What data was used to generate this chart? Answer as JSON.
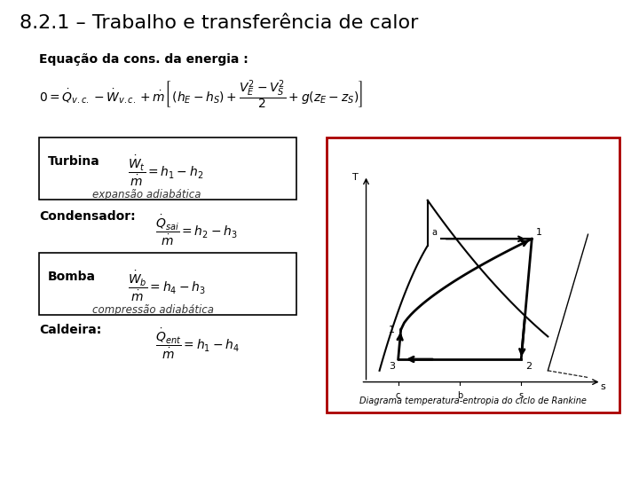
{
  "title": "8.2.1 – Trabalho e transferência de calor",
  "subtitle": "Equação da cons. da energia :",
  "background_color": "#ffffff",
  "title_fontsize": 16,
  "subtitle_fontsize": 10,
  "turbina_label": "Turbina",
  "turbina_note": "expansão adiabática",
  "condensador_label": "Condensador:",
  "bomba_label": "Bomba",
  "bomba_note": "compressão adiabática",
  "caldeira_label": "Caldeira:",
  "diagram_caption": "Diagrama temperatura-entropia do ciclo de Rankine",
  "diagram_border_color": "#aa0000"
}
